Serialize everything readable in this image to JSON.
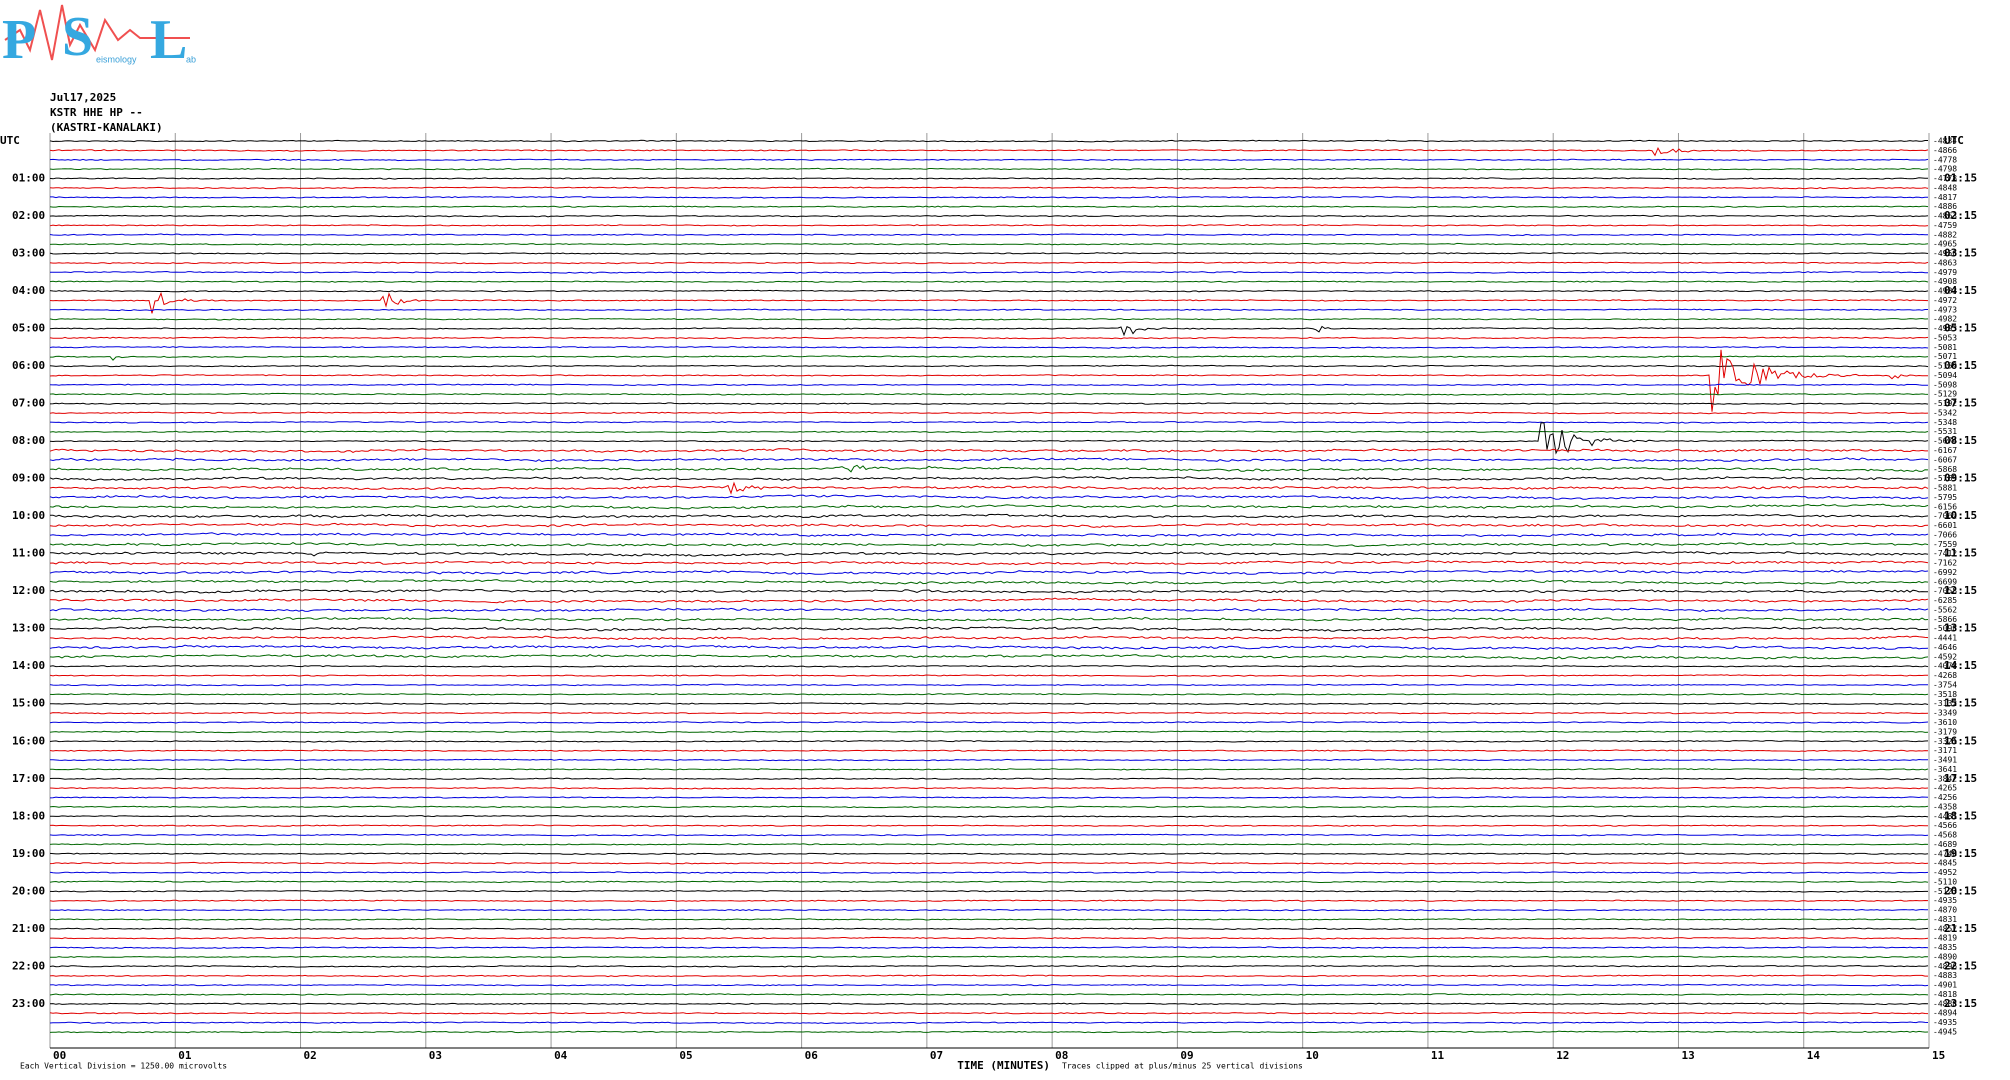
{
  "logo": {
    "p": "P",
    "s": "S",
    "l": "L",
    "sub1": "eismology",
    "sub2": "ab"
  },
  "header": {
    "date": "Jul17,2025",
    "station": "KSTR HHE HP --",
    "site": "(KASTRI-KANALAKI)"
  },
  "left_labels": [
    "UTC",
    "01:00",
    "02:00",
    "03:00",
    "04:00",
    "05:00",
    "06:00",
    "07:00",
    "08:00",
    "09:00",
    "10:00",
    "11:00",
    "12:00",
    "13:00",
    "14:00",
    "15:00",
    "16:00",
    "17:00",
    "18:00",
    "19:00",
    "20:00",
    "21:00",
    "22:00",
    "23:00"
  ],
  "right_labels": [
    "UTC",
    "01:15",
    "02:15",
    "03:15",
    "04:15",
    "05:15",
    "06:15",
    "07:15",
    "08:15",
    "09:15",
    "10:15",
    "11:15",
    "12:15",
    "13:15",
    "14:15",
    "15:15",
    "16:15",
    "17:15",
    "18:15",
    "19:15",
    "20:15",
    "21:15",
    "22:15",
    "23:15"
  ],
  "trace_offsets": [
    "-4834",
    "-4866",
    "-4778",
    "-4798",
    "-4778",
    "-4848",
    "-4817",
    "-4886",
    "-4863",
    "-4759",
    "-4882",
    "-4965",
    "-4956",
    "-4863",
    "-4979",
    "-4908",
    "-4983",
    "-4972",
    "-4973",
    "-4982",
    "-4993",
    "-5053",
    "-5081",
    "-5071",
    "-5159",
    "-5094",
    "-5098",
    "-5129",
    "-5192",
    "-5342",
    "-5348",
    "-5531",
    "-5674",
    "-6167",
    "-6067",
    "-5868",
    "-5765",
    "-5881",
    "-5795",
    "-6156",
    "-7062",
    "-6601",
    "-7066",
    "-7559",
    "-7412",
    "-7162",
    "-6992",
    "-6699",
    "-7058",
    "-6285",
    "-5562",
    "-5866",
    "-5098",
    "-4441",
    "-4646",
    "-4592",
    "-4078",
    "-4268",
    "-3754",
    "-3518",
    "-3132",
    "-3349",
    "-3610",
    "-3179",
    "-3321",
    "-3171",
    "-3491",
    "-3641",
    "-3842",
    "-4265",
    "-4256",
    "-4358",
    "-4481",
    "-4566",
    "-4568",
    "-4689",
    "-4748",
    "-4845",
    "-4952",
    "-5110",
    "-5123",
    "-4935",
    "-4870",
    "-4831",
    "-4857",
    "-4819",
    "-4835",
    "-4890",
    "-4896",
    "-4883",
    "-4901",
    "-4818",
    "-4888",
    "-4894",
    "-4935",
    "-4945"
  ],
  "x_ticks": [
    "00",
    "01",
    "02",
    "03",
    "04",
    "05",
    "06",
    "07",
    "08",
    "09",
    "10",
    "11",
    "12",
    "13",
    "14",
    "15"
  ],
  "footer": {
    "scale": "Each Vertical Division = 1250.00 microvolts",
    "axis": "TIME (MINUTES)",
    "clip": "Traces clipped at plus/minus 25 vertical divisions"
  }
}
